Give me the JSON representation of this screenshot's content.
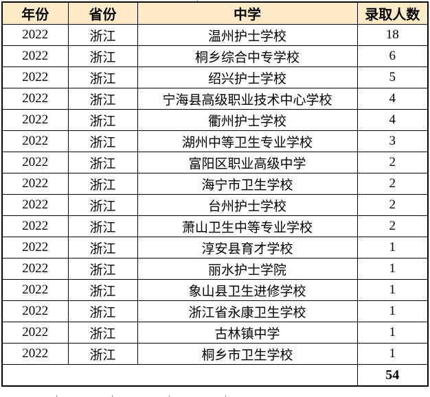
{
  "table": {
    "headers": [
      {
        "key": "year",
        "label": "年份"
      },
      {
        "key": "province",
        "label": "省份"
      },
      {
        "key": "school",
        "label": "中学"
      },
      {
        "key": "count",
        "label": "录取人数"
      }
    ],
    "rows": [
      {
        "year": "2022",
        "province": "浙江",
        "school": "温州护士学校",
        "count": "18"
      },
      {
        "year": "2022",
        "province": "浙江",
        "school": "桐乡综合中专学校",
        "count": "6"
      },
      {
        "year": "2022",
        "province": "浙江",
        "school": "绍兴护士学校",
        "count": "5"
      },
      {
        "year": "2022",
        "province": "浙江",
        "school": "宁海县高级职业技术中心学校",
        "count": "4"
      },
      {
        "year": "2022",
        "province": "浙江",
        "school": "衢州护士学校",
        "count": "4"
      },
      {
        "year": "2022",
        "province": "浙江",
        "school": "湖州中等卫生专业学校",
        "count": "3"
      },
      {
        "year": "2022",
        "province": "浙江",
        "school": "富阳区职业高级中学",
        "count": "2"
      },
      {
        "year": "2022",
        "province": "浙江",
        "school": "海宁市卫生学校",
        "count": "2"
      },
      {
        "year": "2022",
        "province": "浙江",
        "school": "台州护士学校",
        "count": "2"
      },
      {
        "year": "2022",
        "province": "浙江",
        "school": "萧山卫生中等专业学校",
        "count": "2"
      },
      {
        "year": "2022",
        "province": "浙江",
        "school": "淳安县育才学校",
        "count": "1"
      },
      {
        "year": "2022",
        "province": "浙江",
        "school": "丽水护士学院",
        "count": "1"
      },
      {
        "year": "2022",
        "province": "浙江",
        "school": "象山县卫生进修学校",
        "count": "1"
      },
      {
        "year": "2022",
        "province": "浙江",
        "school": "浙江省永康卫生学校",
        "count": "1"
      },
      {
        "year": "2022",
        "province": "浙江",
        "school": "古林镇中学",
        "count": "1"
      },
      {
        "year": "2022",
        "province": "浙江",
        "school": "桐乡市卫生学校",
        "count": "1"
      }
    ],
    "total": "54"
  },
  "chart_data": {
    "type": "table",
    "title": "",
    "columns": [
      "年份",
      "省份",
      "中学",
      "录取人数"
    ],
    "rows": [
      [
        "2022",
        "浙江",
        "温州护士学校",
        18
      ],
      [
        "2022",
        "浙江",
        "桐乡综合中专学校",
        6
      ],
      [
        "2022",
        "浙江",
        "绍兴护士学校",
        5
      ],
      [
        "2022",
        "浙江",
        "宁海县高级职业技术中心学校",
        4
      ],
      [
        "2022",
        "浙江",
        "衢州护士学校",
        4
      ],
      [
        "2022",
        "浙江",
        "湖州中等卫生专业学校",
        3
      ],
      [
        "2022",
        "浙江",
        "富阳区职业高级中学",
        2
      ],
      [
        "2022",
        "浙江",
        "海宁市卫生学校",
        2
      ],
      [
        "2022",
        "浙江",
        "台州护士学校",
        2
      ],
      [
        "2022",
        "浙江",
        "萧山卫生中等专业学校",
        2
      ],
      [
        "2022",
        "浙江",
        "淳安县育才学校",
        1
      ],
      [
        "2022",
        "浙江",
        "丽水护士学院",
        1
      ],
      [
        "2022",
        "浙江",
        "象山县卫生进修学校",
        1
      ],
      [
        "2022",
        "浙江",
        "浙江省永康卫生学校",
        1
      ],
      [
        "2022",
        "浙江",
        "古林镇中学",
        1
      ],
      [
        "2022",
        "浙江",
        "桐乡市卫生学校",
        1
      ]
    ],
    "total_row": [
      "",
      "",
      "",
      54
    ],
    "layout_hints": {
      "header_background": "#FCEBC6",
      "border_color": "#000000",
      "grid": "on",
      "text_align": "center"
    }
  },
  "colors": {
    "header_bg": "#FCEBC6",
    "border": "#000000",
    "text": "#000000",
    "page_bg": "#FFFFFF",
    "gridline_stub": "#9A9A9A"
  }
}
